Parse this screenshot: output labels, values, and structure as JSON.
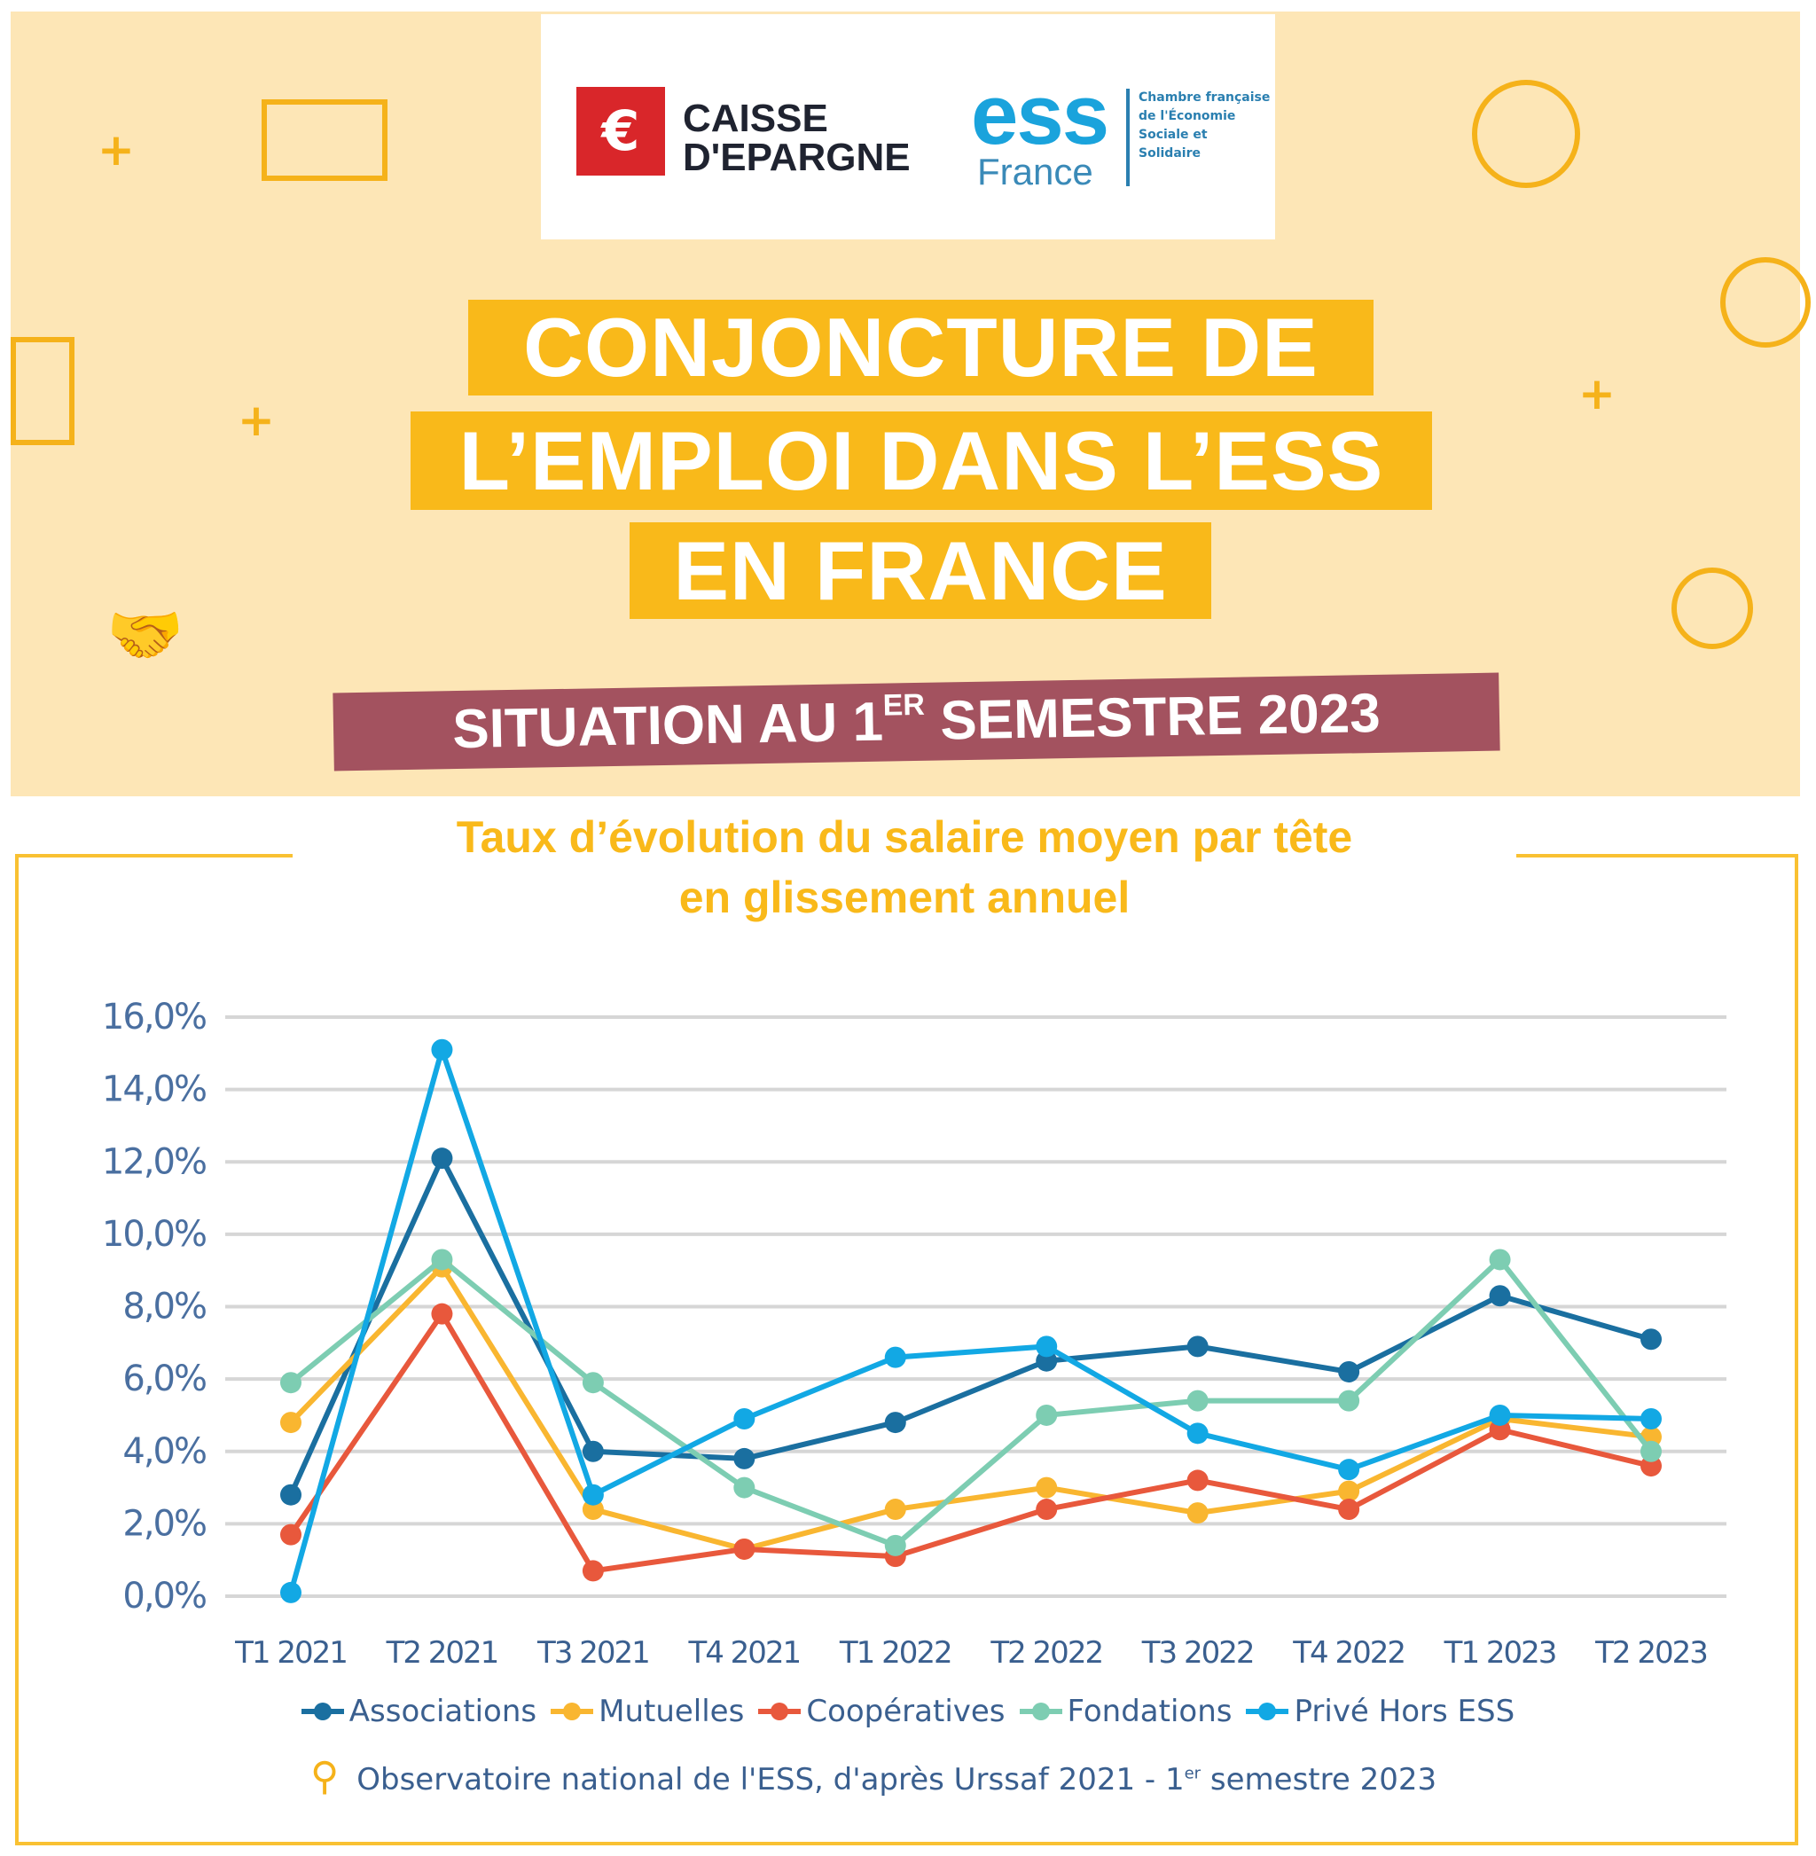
{
  "header": {
    "logo_caisse": "CAISSE D'EPARGNE",
    "logo_ess": "ess",
    "logo_ess_france": "France",
    "logo_ess_sub": "Chambre française de l'Économie Sociale et Solidaire",
    "title_lines": [
      "CONJONCTURE DE",
      "L’EMPLOI DANS L’ESS",
      "EN FRANCE"
    ],
    "subtitle_pre": "SITUATION AU 1",
    "subtitle_sup": "ER",
    "subtitle_post": " SEMESTRE 2023",
    "colors": {
      "banner": "#fde6b6",
      "title_bg": "#f9b91a",
      "subtitle_bg": "#a3525f"
    }
  },
  "chart_data": {
    "type": "line",
    "title": "Taux d’évolution du salaire moyen par tête en glissement annuel",
    "title_lines": [
      "Taux d’évolution du salaire moyen par tête",
      "en glissement annuel"
    ],
    "categories": [
      "T1 2021",
      "T2 2021",
      "T3 2021",
      "T4 2021",
      "T1 2022",
      "T2 2022",
      "T3 2022",
      "T4 2022",
      "T1 2023",
      "T2 2023"
    ],
    "ylim": [
      0,
      16
    ],
    "yticks": [
      "0,0%",
      "2,0%",
      "4,0%",
      "6,0%",
      "8,0%",
      "10,0%",
      "12,0%",
      "14,0%",
      "16,0%"
    ],
    "grid": true,
    "legend_position": "bottom",
    "series": [
      {
        "name": "Associations",
        "color": "#1a6fa0",
        "values": [
          2.8,
          12.1,
          4.0,
          3.8,
          4.8,
          6.5,
          6.9,
          6.2,
          8.3,
          7.1
        ]
      },
      {
        "name": "Mutuelles",
        "color": "#f9b630",
        "values": [
          4.8,
          9.1,
          2.4,
          1.3,
          2.4,
          3.0,
          2.3,
          2.9,
          4.9,
          4.4
        ]
      },
      {
        "name": "Coopératives",
        "color": "#e8583c",
        "values": [
          1.7,
          7.8,
          0.7,
          1.3,
          1.1,
          2.4,
          3.2,
          2.4,
          4.6,
          3.6
        ]
      },
      {
        "name": "Fondations",
        "color": "#7dcdb2",
        "values": [
          5.9,
          9.3,
          5.9,
          3.0,
          1.4,
          5.0,
          5.4,
          5.4,
          9.3,
          4.0
        ]
      },
      {
        "name": "Privé Hors ESS",
        "color": "#12a8e4",
        "values": [
          0.1,
          15.1,
          2.8,
          4.9,
          6.6,
          6.9,
          4.5,
          3.5,
          5.0,
          4.9
        ]
      }
    ]
  },
  "source": {
    "pre": "Observatoire national de l'ESS, d'après Urssaf 2021 - 1",
    "sup": "er",
    "post": " semestre 2023"
  }
}
